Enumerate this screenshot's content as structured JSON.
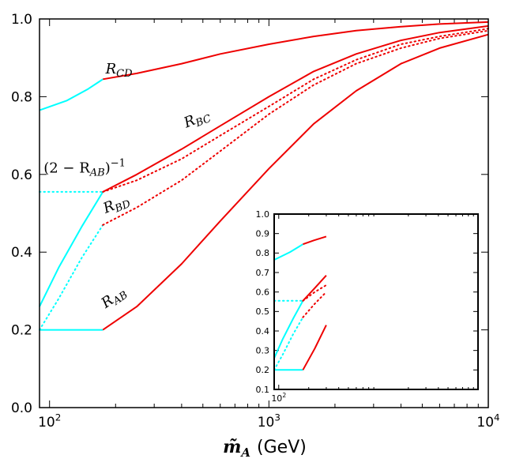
{
  "chart_data": [
    {
      "type": "line",
      "xscale": "log",
      "xlim": [
        90,
        10000
      ],
      "ylim": [
        0,
        1
      ],
      "xlabel_symbol": "m̃",
      "xlabel_sub": "A",
      "xlabel_unit": "(GeV)",
      "x_ticks": [
        {
          "value": 100,
          "base": "10",
          "exp": "2"
        },
        {
          "value": 1000,
          "base": "10",
          "exp": "3"
        },
        {
          "value": 10000,
          "base": "10",
          "exp": "4"
        }
      ],
      "y_ticks": [
        0.0,
        0.2,
        0.4,
        0.6,
        0.8,
        1.0
      ],
      "y_tick_labels": [
        "0.0",
        "0.2",
        "0.4",
        "0.6",
        "0.8",
        "1.0"
      ],
      "series": [
        {
          "name": "R_CD low",
          "color": "#00ffff",
          "style": "solid",
          "x": [
            90,
            120,
            150,
            175
          ],
          "y": [
            0.765,
            0.79,
            0.82,
            0.845
          ]
        },
        {
          "name": "R_CD",
          "color": "#ee0000",
          "style": "solid",
          "x": [
            175,
            250,
            400,
            600,
            1000,
            1600,
            2500,
            4000,
            6000,
            10000
          ],
          "y": [
            0.845,
            0.86,
            0.885,
            0.91,
            0.935,
            0.955,
            0.97,
            0.98,
            0.987,
            0.992
          ]
        },
        {
          "name": "(2-R_AB)^-1 low",
          "color": "#00ffff",
          "style": "dotted",
          "x": [
            90,
            175
          ],
          "y": [
            0.555,
            0.555
          ]
        },
        {
          "name": "R_BC low",
          "color": "#00ffff",
          "style": "solid",
          "x": [
            90,
            110,
            140,
            175
          ],
          "y": [
            0.26,
            0.36,
            0.465,
            0.555
          ]
        },
        {
          "name": "R_BC",
          "color": "#ee0000",
          "style": "solid",
          "x": [
            175,
            250,
            400,
            600,
            1000,
            1600,
            2500,
            4000,
            6000,
            10000
          ],
          "y": [
            0.555,
            0.6,
            0.665,
            0.725,
            0.8,
            0.865,
            0.91,
            0.945,
            0.965,
            0.982
          ]
        },
        {
          "name": "(2-R_AB)^-1",
          "color": "#ee0000",
          "style": "dotted",
          "x": [
            175,
            250,
            400,
            600,
            1000,
            1600,
            2500,
            4000,
            6000,
            10000
          ],
          "y": [
            0.555,
            0.585,
            0.64,
            0.7,
            0.775,
            0.845,
            0.895,
            0.935,
            0.955,
            0.975
          ]
        },
        {
          "name": "R_BD low",
          "color": "#00ffff",
          "style": "dotted",
          "x": [
            90,
            110,
            140,
            175
          ],
          "y": [
            0.2,
            0.28,
            0.385,
            0.47
          ]
        },
        {
          "name": "R_BD",
          "color": "#ee0000",
          "style": "dotted",
          "x": [
            175,
            250,
            400,
            600,
            1000,
            1600,
            2500,
            4000,
            6000,
            10000
          ],
          "y": [
            0.47,
            0.515,
            0.585,
            0.66,
            0.755,
            0.83,
            0.885,
            0.925,
            0.95,
            0.97
          ]
        },
        {
          "name": "R_AB low",
          "color": "#00ffff",
          "style": "solid",
          "x": [
            90,
            175
          ],
          "y": [
            0.2,
            0.2
          ]
        },
        {
          "name": "R_AB",
          "color": "#ee0000",
          "style": "solid",
          "x": [
            175,
            250,
            400,
            600,
            1000,
            1600,
            2500,
            4000,
            6000,
            10000
          ],
          "y": [
            0.2,
            0.26,
            0.37,
            0.48,
            0.615,
            0.73,
            0.815,
            0.885,
            0.925,
            0.96
          ]
        }
      ],
      "annotations": [
        {
          "name": "R_CD",
          "base": "R",
          "sub": "CD",
          "x": 180,
          "y": 0.86,
          "rotation": 0
        },
        {
          "name": "R_BC",
          "base": "R",
          "sub": "BC",
          "x": 420,
          "y": 0.72,
          "rotation": -22
        },
        {
          "name": "(2-R_AB)^-1",
          "pre": "(2 − R",
          "sub": "AB",
          "post": ")",
          "sup": "−1",
          "x": 94,
          "y": 0.605,
          "rotation": 0
        },
        {
          "name": "R_BD",
          "base": "R",
          "sub": "BD",
          "x": 180,
          "y": 0.5,
          "rotation": -22
        },
        {
          "name": "R_AB",
          "base": "R",
          "sub": "AB",
          "x": 180,
          "y": 0.255,
          "rotation": -35
        }
      ]
    },
    {
      "type": "line",
      "xscale": "log",
      "xlim": [
        90,
        10000
      ],
      "ylim": [
        0.1,
        1.0
      ],
      "x_ticks": [
        {
          "value": 100,
          "base": "10",
          "exp": "2"
        }
      ],
      "y_ticks": [
        0.1,
        0.2,
        0.3,
        0.4,
        0.5,
        0.6,
        0.7,
        0.8,
        0.9,
        1.0
      ],
      "y_tick_labels": [
        "0.1",
        "0.2",
        "0.3",
        "0.4",
        "0.5",
        "0.6",
        "0.7",
        "0.8",
        "0.9",
        "1.0"
      ],
      "series": [
        {
          "name": "R_CD low",
          "color": "#00ffff",
          "style": "solid",
          "x": [
            90,
            130,
            175
          ],
          "y": [
            0.765,
            0.805,
            0.845
          ]
        },
        {
          "name": "R_CD",
          "color": "#ee0000",
          "style": "solid",
          "x": [
            175,
            225,
            300
          ],
          "y": [
            0.845,
            0.865,
            0.885
          ]
        },
        {
          "name": "(2-R_AB)^-1 low",
          "color": "#00ffff",
          "style": "dotted",
          "x": [
            90,
            175
          ],
          "y": [
            0.555,
            0.555
          ]
        },
        {
          "name": "R_BC low",
          "color": "#00ffff",
          "style": "solid",
          "x": [
            90,
            110,
            140,
            175
          ],
          "y": [
            0.26,
            0.36,
            0.465,
            0.555
          ]
        },
        {
          "name": "R_BC",
          "color": "#ee0000",
          "style": "solid",
          "x": [
            175,
            230,
            300
          ],
          "y": [
            0.555,
            0.62,
            0.685
          ]
        },
        {
          "name": "(2-R_AB)^-1",
          "color": "#ee0000",
          "style": "dotted",
          "x": [
            175,
            230,
            300
          ],
          "y": [
            0.555,
            0.6,
            0.635
          ]
        },
        {
          "name": "R_BD low",
          "color": "#00ffff",
          "style": "dotted",
          "x": [
            90,
            110,
            140,
            175
          ],
          "y": [
            0.2,
            0.28,
            0.385,
            0.47
          ]
        },
        {
          "name": "R_BD",
          "color": "#ee0000",
          "style": "dotted",
          "x": [
            175,
            230,
            300
          ],
          "y": [
            0.47,
            0.54,
            0.6
          ]
        },
        {
          "name": "R_AB low",
          "color": "#00ffff",
          "style": "solid",
          "x": [
            90,
            175
          ],
          "y": [
            0.2,
            0.2
          ]
        },
        {
          "name": "R_AB",
          "color": "#ee0000",
          "style": "solid",
          "x": [
            175,
            230,
            300
          ],
          "y": [
            0.2,
            0.31,
            0.43
          ]
        }
      ]
    }
  ]
}
